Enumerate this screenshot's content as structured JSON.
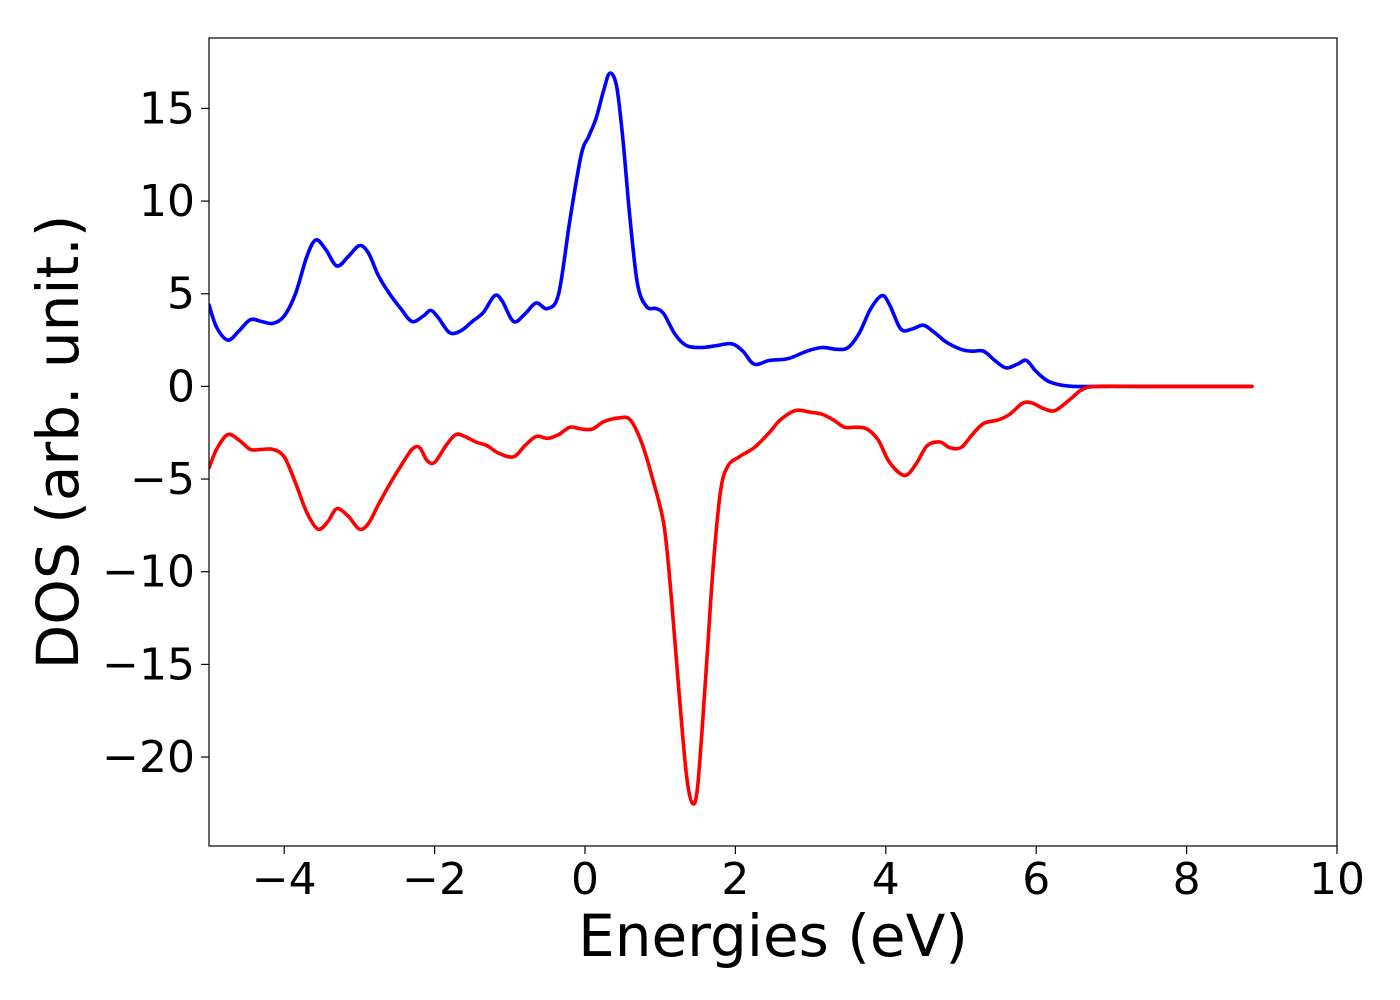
{
  "chart_data": {
    "type": "line",
    "xlabel": "Energies (eV)",
    "ylabel": "DOS (arb. unit.)",
    "xlim": [
      -5,
      10
    ],
    "ylim": [
      -24.8,
      18.8
    ],
    "xticks": [
      -4,
      -2,
      0,
      2,
      4,
      6,
      8,
      10
    ],
    "yticks": [
      15,
      10,
      5,
      0,
      -5,
      -10,
      -15,
      -20
    ],
    "xtick_labels": [
      "−4",
      "−2",
      "0",
      "2",
      "4",
      "6",
      "8",
      "10"
    ],
    "ytick_labels": [
      "15",
      "10",
      "5",
      "0",
      "−5",
      "−10",
      "−15",
      "−20"
    ],
    "grid": false,
    "legend": false,
    "series": [
      {
        "color": "#0000ff",
        "points": [
          [
            -5.0,
            4.4
          ],
          [
            -4.9,
            3.2
          ],
          [
            -4.75,
            2.5
          ],
          [
            -4.6,
            3.0
          ],
          [
            -4.45,
            3.6
          ],
          [
            -4.3,
            3.5
          ],
          [
            -4.15,
            3.4
          ],
          [
            -4.0,
            3.8
          ],
          [
            -3.85,
            5.0
          ],
          [
            -3.7,
            7.0
          ],
          [
            -3.58,
            7.9
          ],
          [
            -3.45,
            7.4
          ],
          [
            -3.3,
            6.5
          ],
          [
            -3.15,
            7.0
          ],
          [
            -3.0,
            7.6
          ],
          [
            -2.88,
            7.2
          ],
          [
            -2.75,
            6.0
          ],
          [
            -2.6,
            5.0
          ],
          [
            -2.45,
            4.2
          ],
          [
            -2.3,
            3.5
          ],
          [
            -2.15,
            3.8
          ],
          [
            -2.05,
            4.1
          ],
          [
            -1.95,
            3.7
          ],
          [
            -1.8,
            2.9
          ],
          [
            -1.65,
            3.0
          ],
          [
            -1.5,
            3.5
          ],
          [
            -1.35,
            4.0
          ],
          [
            -1.2,
            4.9
          ],
          [
            -1.1,
            4.6
          ],
          [
            -0.95,
            3.5
          ],
          [
            -0.8,
            3.9
          ],
          [
            -0.65,
            4.5
          ],
          [
            -0.5,
            4.2
          ],
          [
            -0.35,
            5.0
          ],
          [
            -0.2,
            9.0
          ],
          [
            -0.05,
            12.5
          ],
          [
            0.05,
            13.5
          ],
          [
            0.15,
            14.5
          ],
          [
            0.25,
            16.0
          ],
          [
            0.33,
            16.9
          ],
          [
            0.42,
            16.2
          ],
          [
            0.5,
            13.5
          ],
          [
            0.6,
            9.0
          ],
          [
            0.7,
            5.5
          ],
          [
            0.82,
            4.3
          ],
          [
            0.95,
            4.2
          ],
          [
            1.05,
            3.9
          ],
          [
            1.2,
            2.8
          ],
          [
            1.35,
            2.2
          ],
          [
            1.55,
            2.1
          ],
          [
            1.75,
            2.2
          ],
          [
            1.95,
            2.3
          ],
          [
            2.1,
            1.9
          ],
          [
            2.25,
            1.2
          ],
          [
            2.45,
            1.4
          ],
          [
            2.7,
            1.5
          ],
          [
            2.95,
            1.9
          ],
          [
            3.15,
            2.1
          ],
          [
            3.35,
            2.0
          ],
          [
            3.5,
            2.1
          ],
          [
            3.65,
            2.9
          ],
          [
            3.8,
            4.2
          ],
          [
            3.95,
            4.9
          ],
          [
            4.05,
            4.4
          ],
          [
            4.2,
            3.1
          ],
          [
            4.35,
            3.1
          ],
          [
            4.5,
            3.3
          ],
          [
            4.65,
            2.9
          ],
          [
            4.8,
            2.4
          ],
          [
            5.0,
            2.0
          ],
          [
            5.15,
            1.9
          ],
          [
            5.3,
            1.9
          ],
          [
            5.45,
            1.4
          ],
          [
            5.6,
            1.0
          ],
          [
            5.75,
            1.2
          ],
          [
            5.87,
            1.4
          ],
          [
            6.0,
            0.8
          ],
          [
            6.15,
            0.3
          ],
          [
            6.3,
            0.1
          ],
          [
            6.5,
            0.0
          ],
          [
            7.0,
            0.0
          ],
          [
            8.0,
            0.0
          ],
          [
            8.87,
            0.0
          ]
        ]
      },
      {
        "color": "#ff0000",
        "points": [
          [
            -5.0,
            -4.4
          ],
          [
            -4.9,
            -3.4
          ],
          [
            -4.75,
            -2.6
          ],
          [
            -4.6,
            -2.9
          ],
          [
            -4.45,
            -3.4
          ],
          [
            -4.3,
            -3.4
          ],
          [
            -4.15,
            -3.4
          ],
          [
            -4.0,
            -3.8
          ],
          [
            -3.85,
            -5.2
          ],
          [
            -3.7,
            -6.8
          ],
          [
            -3.55,
            -7.7
          ],
          [
            -3.42,
            -7.3
          ],
          [
            -3.3,
            -6.6
          ],
          [
            -3.15,
            -7.0
          ],
          [
            -3.0,
            -7.7
          ],
          [
            -2.88,
            -7.4
          ],
          [
            -2.75,
            -6.4
          ],
          [
            -2.6,
            -5.3
          ],
          [
            -2.45,
            -4.3
          ],
          [
            -2.3,
            -3.4
          ],
          [
            -2.2,
            -3.3
          ],
          [
            -2.1,
            -4.0
          ],
          [
            -2.0,
            -4.1
          ],
          [
            -1.85,
            -3.2
          ],
          [
            -1.72,
            -2.6
          ],
          [
            -1.6,
            -2.7
          ],
          [
            -1.45,
            -3.0
          ],
          [
            -1.3,
            -3.2
          ],
          [
            -1.15,
            -3.6
          ],
          [
            -0.95,
            -3.8
          ],
          [
            -0.8,
            -3.2
          ],
          [
            -0.65,
            -2.7
          ],
          [
            -0.5,
            -2.8
          ],
          [
            -0.35,
            -2.6
          ],
          [
            -0.2,
            -2.2
          ],
          [
            -0.05,
            -2.3
          ],
          [
            0.1,
            -2.3
          ],
          [
            0.25,
            -1.9
          ],
          [
            0.45,
            -1.7
          ],
          [
            0.6,
            -1.8
          ],
          [
            0.75,
            -3.0
          ],
          [
            0.9,
            -5.0
          ],
          [
            1.05,
            -7.5
          ],
          [
            1.15,
            -11.5
          ],
          [
            1.25,
            -16.5
          ],
          [
            1.35,
            -21.0
          ],
          [
            1.43,
            -22.5
          ],
          [
            1.5,
            -21.5
          ],
          [
            1.6,
            -16.0
          ],
          [
            1.7,
            -10.0
          ],
          [
            1.8,
            -5.7
          ],
          [
            1.9,
            -4.3
          ],
          [
            2.05,
            -3.8
          ],
          [
            2.25,
            -3.3
          ],
          [
            2.45,
            -2.5
          ],
          [
            2.6,
            -1.8
          ],
          [
            2.8,
            -1.3
          ],
          [
            3.0,
            -1.4
          ],
          [
            3.15,
            -1.5
          ],
          [
            3.3,
            -1.8
          ],
          [
            3.45,
            -2.2
          ],
          [
            3.6,
            -2.2
          ],
          [
            3.75,
            -2.3
          ],
          [
            3.9,
            -2.9
          ],
          [
            4.05,
            -4.1
          ],
          [
            4.25,
            -4.8
          ],
          [
            4.4,
            -4.2
          ],
          [
            4.55,
            -3.2
          ],
          [
            4.72,
            -3.0
          ],
          [
            4.85,
            -3.3
          ],
          [
            5.0,
            -3.3
          ],
          [
            5.15,
            -2.6
          ],
          [
            5.3,
            -2.0
          ],
          [
            5.5,
            -1.8
          ],
          [
            5.65,
            -1.5
          ],
          [
            5.82,
            -0.9
          ],
          [
            5.95,
            -0.9
          ],
          [
            6.1,
            -1.2
          ],
          [
            6.25,
            -1.3
          ],
          [
            6.45,
            -0.7
          ],
          [
            6.6,
            -0.2
          ],
          [
            6.8,
            0.0
          ],
          [
            7.5,
            0.0
          ],
          [
            8.87,
            0.0
          ]
        ]
      }
    ]
  }
}
